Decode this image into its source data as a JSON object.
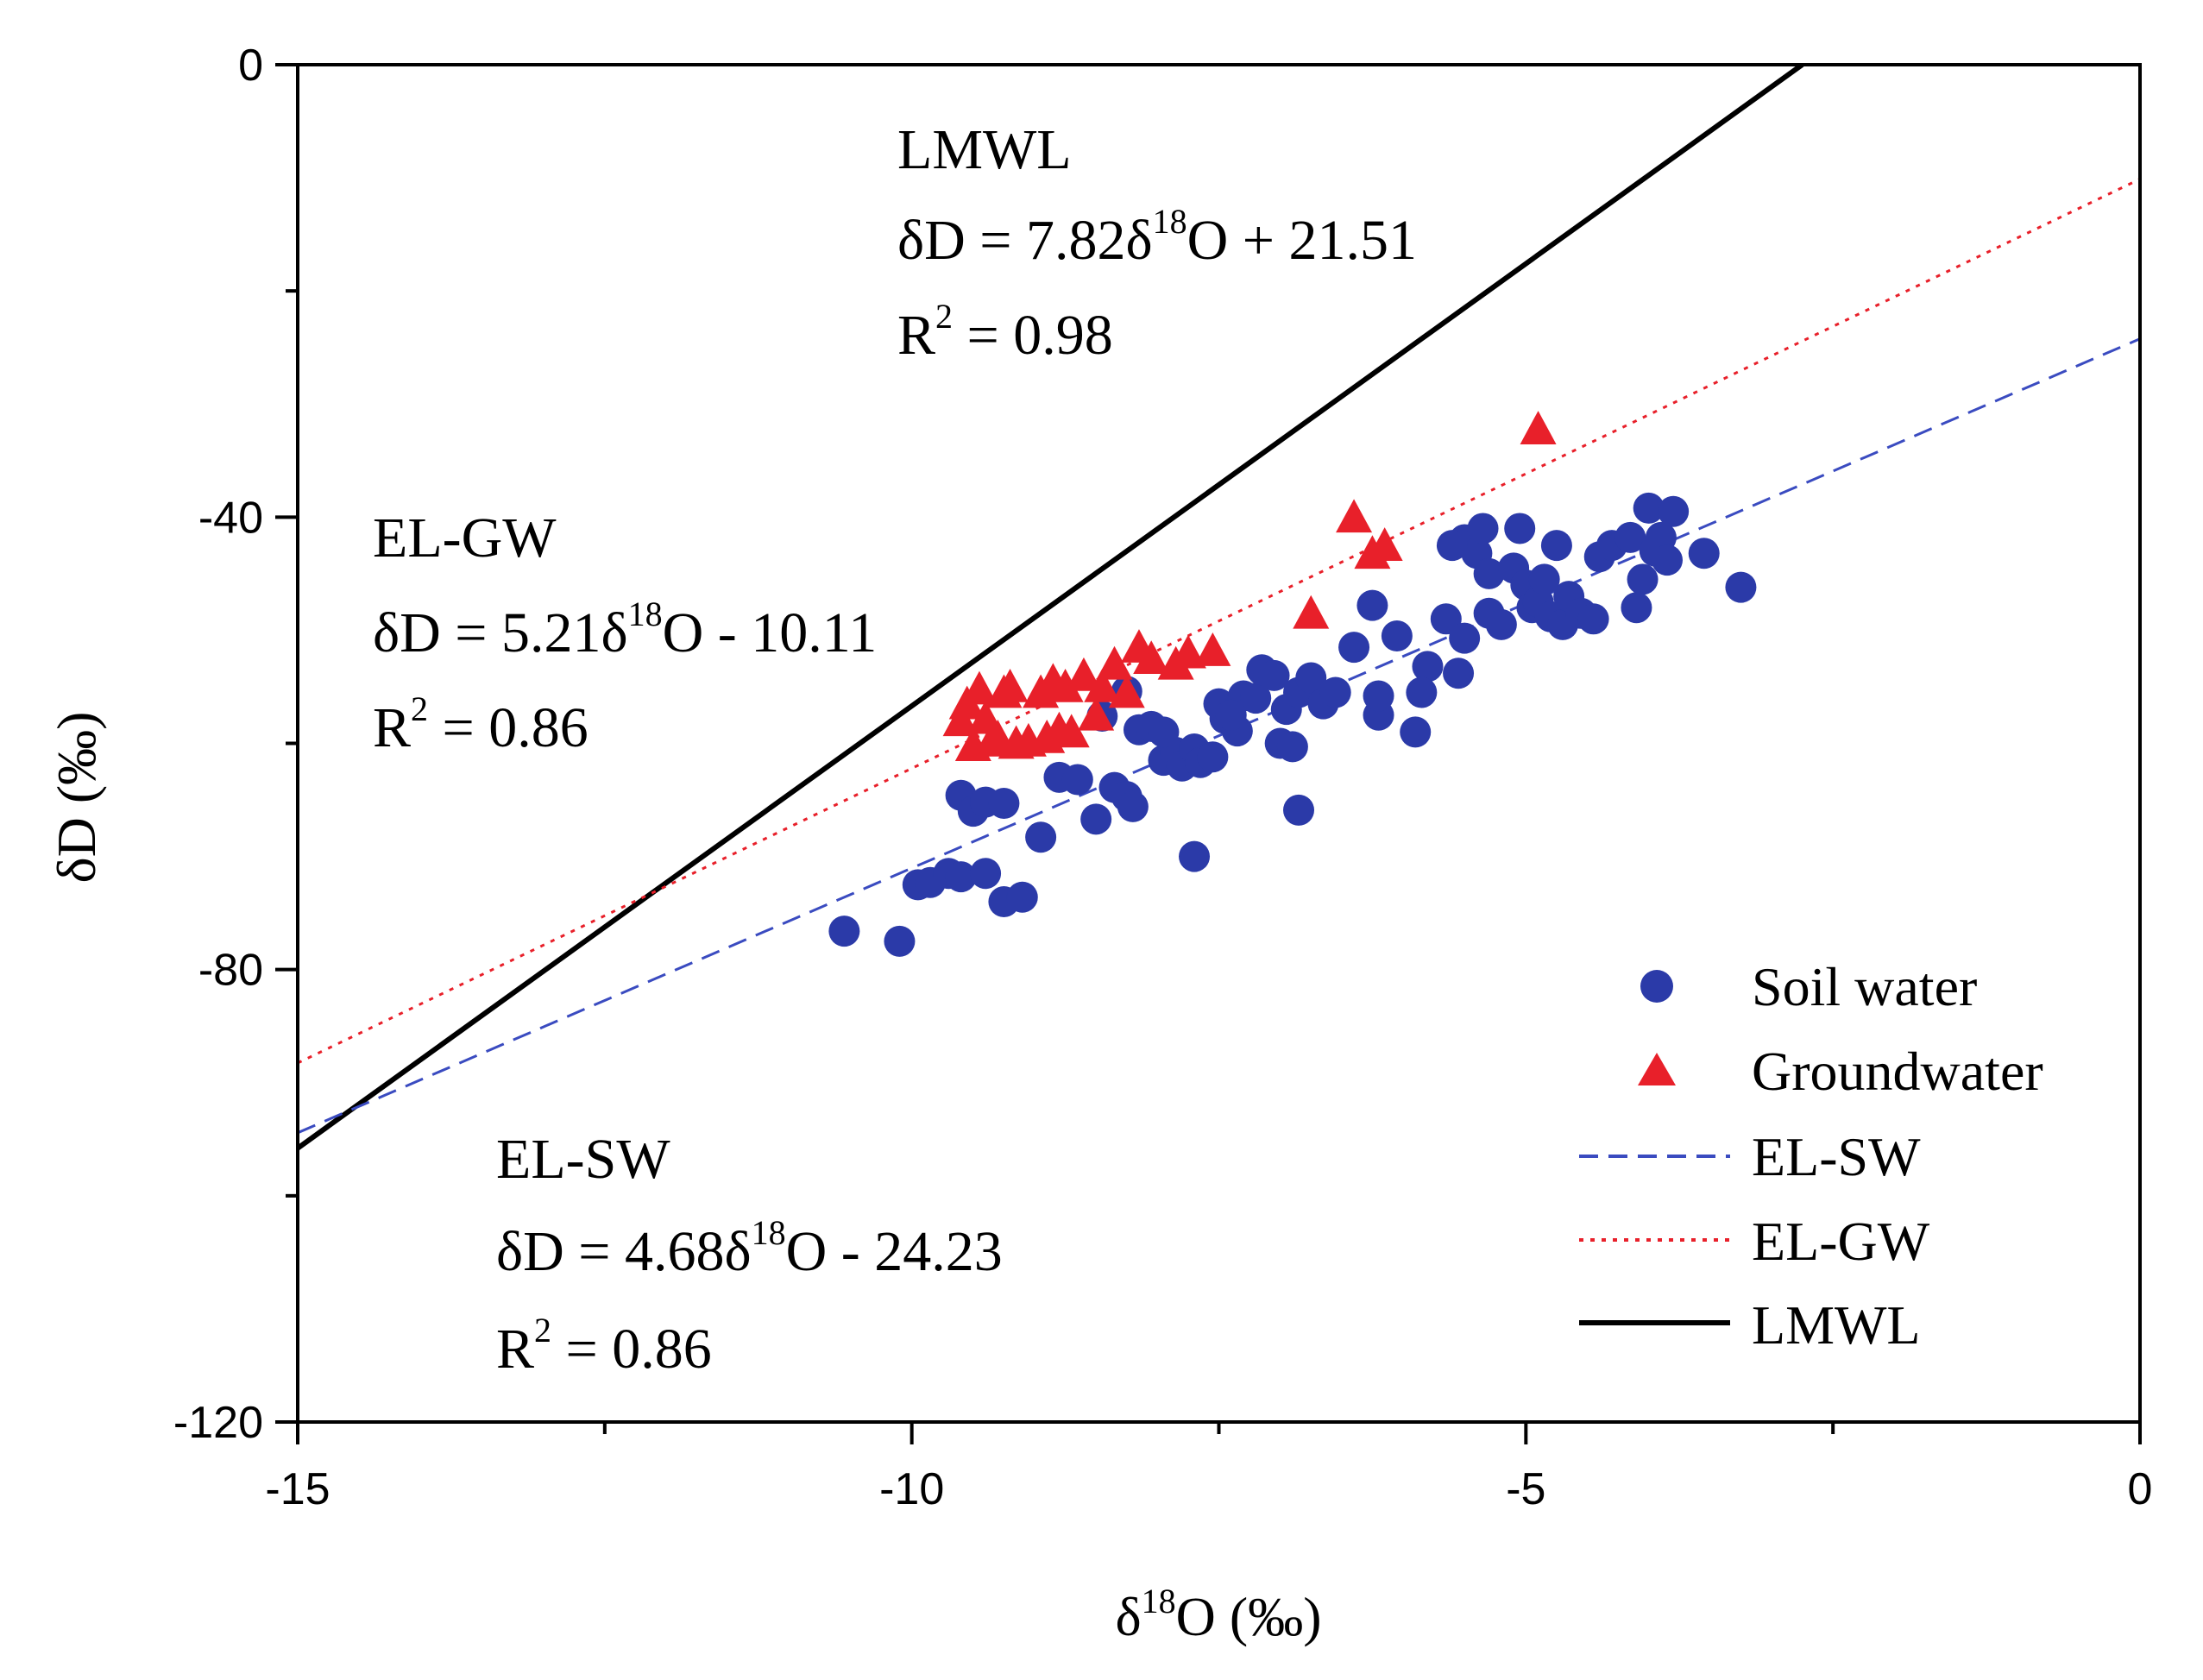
{
  "chart_data": {
    "type": "scatter",
    "xlabel": {
      "pre": "δ",
      "sup": "18",
      "post": "O (‰)"
    },
    "ylabel": "δD (‰)",
    "xlim": [
      -15,
      0
    ],
    "ylim": [
      -120,
      0
    ],
    "x_ticks": [
      -15,
      -10,
      -5,
      0
    ],
    "y_ticks": [
      -120,
      -80,
      -40,
      0
    ],
    "x_tick_labels": [
      "-15",
      "-10",
      "-5",
      "0"
    ],
    "y_tick_labels": [
      "-120",
      "-80",
      "-40",
      "0"
    ],
    "grid": false,
    "legend_position": "bottom-right",
    "legend": [
      {
        "label": "Soil water",
        "marker": "circle",
        "color": "#2b3aa8"
      },
      {
        "label": "Groundwater",
        "marker": "triangle",
        "color": "#e8202a"
      },
      {
        "label": "EL-SW",
        "line": "dashed",
        "color": "#3a4bc0"
      },
      {
        "label": "EL-GW",
        "line": "dotted",
        "color": "#e8202a"
      },
      {
        "label": "LMWL",
        "line": "solid",
        "color": "#000000"
      }
    ],
    "lines": [
      {
        "name": "LMWL",
        "slope": 7.82,
        "intercept": 21.51,
        "x_range": [
          -15,
          -2.75
        ],
        "style": "solid",
        "color": "#000000"
      },
      {
        "name": "EL-GW",
        "slope": 5.21,
        "intercept": -10.11,
        "x_range": [
          -15,
          0
        ],
        "style": "dotted",
        "color": "#e8202a"
      },
      {
        "name": "EL-SW",
        "slope": 4.68,
        "intercept": -24.23,
        "x_range": [
          -15,
          0
        ],
        "style": "dashed",
        "color": "#3a4bc0"
      }
    ],
    "annotations": [
      {
        "title": "LMWL",
        "eq_pre": "δD = 7.82δ",
        "eq_sup": "18",
        "eq_post": "O + 21.51",
        "r2_pre": "R",
        "r2_sup": "2",
        "r2_post": " = 0.98"
      },
      {
        "title": "EL-GW",
        "eq_pre": "δD = 5.21δ",
        "eq_sup": "18",
        "eq_post": "O - 10.11",
        "r2_pre": "R",
        "r2_sup": "2",
        "r2_post": " = 0.86"
      },
      {
        "title": "EL-SW",
        "eq_pre": "δD = 4.68δ",
        "eq_sup": "18",
        "eq_post": "O - 24.23",
        "r2_pre": "R",
        "r2_sup": "2",
        "r2_post": " = 0.86"
      }
    ],
    "series": [
      {
        "name": "Soil water",
        "marker": "circle",
        "color": "#2b3aa8",
        "points": [
          [
            -10.55,
            -76.6
          ],
          [
            -10.1,
            -77.5
          ],
          [
            -9.95,
            -72.5
          ],
          [
            -9.85,
            -72.3
          ],
          [
            -9.7,
            -71.5
          ],
          [
            -9.6,
            -71.8
          ],
          [
            -9.4,
            -71.5
          ],
          [
            -9.25,
            -74.0
          ],
          [
            -9.1,
            -73.6
          ],
          [
            -9.6,
            -64.6
          ],
          [
            -9.5,
            -66.0
          ],
          [
            -9.4,
            -65.2
          ],
          [
            -9.25,
            -65.3
          ],
          [
            -8.95,
            -68.3
          ],
          [
            -8.8,
            -63.0
          ],
          [
            -8.65,
            -63.2
          ],
          [
            -8.5,
            -66.7
          ],
          [
            -8.35,
            -63.9
          ],
          [
            -8.25,
            -64.7
          ],
          [
            -8.2,
            -65.6
          ],
          [
            -8.45,
            -57.6
          ],
          [
            -8.25,
            -55.4
          ],
          [
            -8.15,
            -58.8
          ],
          [
            -8.05,
            -58.5
          ],
          [
            -7.95,
            -61.5
          ],
          [
            -7.85,
            -60.8
          ],
          [
            -7.8,
            -62.0
          ],
          [
            -7.7,
            -60.5
          ],
          [
            -7.65,
            -61.7
          ],
          [
            -7.55,
            -61.2
          ],
          [
            -7.5,
            -56.5
          ],
          [
            -7.45,
            -57.8
          ],
          [
            -7.35,
            -58.9
          ],
          [
            -7.3,
            -55.8
          ],
          [
            -7.2,
            -56.0
          ],
          [
            -7.15,
            -53.5
          ],
          [
            -7.05,
            -54.0
          ],
          [
            -6.95,
            -57.0
          ],
          [
            -6.85,
            -55.5
          ],
          [
            -6.75,
            -54.2
          ],
          [
            -7.0,
            -60.0
          ],
          [
            -6.9,
            -60.3
          ],
          [
            -6.85,
            -65.9
          ],
          [
            -7.7,
            -70.0
          ],
          [
            -6.65,
            -56.5
          ],
          [
            -6.55,
            -55.5
          ],
          [
            -6.4,
            -51.5
          ],
          [
            -6.25,
            -47.8
          ],
          [
            -6.2,
            -57.5
          ],
          [
            -6.05,
            -50.5
          ],
          [
            -6.2,
            -55.8
          ],
          [
            -5.9,
            -59.0
          ],
          [
            -5.8,
            -53.2
          ],
          [
            -5.85,
            -55.5
          ],
          [
            -5.65,
            -49.0
          ],
          [
            -5.55,
            -53.8
          ],
          [
            -5.5,
            -50.7
          ],
          [
            -5.5,
            -42.0
          ],
          [
            -5.4,
            -43.2
          ],
          [
            -5.35,
            -41.0
          ],
          [
            -5.3,
            -45.0
          ],
          [
            -5.3,
            -48.5
          ],
          [
            -5.2,
            -49.5
          ],
          [
            -5.1,
            -44.5
          ],
          [
            -5.05,
            -41.0
          ],
          [
            -5.0,
            -46.0
          ],
          [
            -4.95,
            -48.0
          ],
          [
            -4.9,
            -47.5
          ],
          [
            -4.85,
            -45.5
          ],
          [
            -4.8,
            -48.8
          ],
          [
            -4.75,
            -42.5
          ],
          [
            -4.7,
            -49.5
          ],
          [
            -4.65,
            -47.0
          ],
          [
            -4.55,
            -48.5
          ],
          [
            -4.45,
            -49.0
          ],
          [
            -4.4,
            -43.5
          ],
          [
            -4.3,
            -42.5
          ],
          [
            -4.15,
            -41.8
          ],
          [
            -4.1,
            -48.0
          ],
          [
            -4.05,
            -45.5
          ],
          [
            -4.0,
            -39.2
          ],
          [
            -3.95,
            -43.0
          ],
          [
            -3.9,
            -41.8
          ],
          [
            -3.85,
            -43.8
          ],
          [
            -3.8,
            -39.5
          ],
          [
            -3.55,
            -43.2
          ],
          [
            -3.25,
            -46.2
          ],
          [
            -7.95,
            -59.0
          ],
          [
            -7.4,
            -57.5
          ],
          [
            -5.6,
            -42.5
          ]
        ]
      },
      {
        "name": "Groundwater",
        "marker": "triangle",
        "color": "#e8202a",
        "points": [
          [
            -9.6,
            -58.0
          ],
          [
            -9.55,
            -56.5
          ],
          [
            -9.5,
            -60.2
          ],
          [
            -9.45,
            -55.2
          ],
          [
            -9.4,
            -57.8
          ],
          [
            -9.35,
            -59.8
          ],
          [
            -9.3,
            -59.5
          ],
          [
            -9.25,
            -55.5
          ],
          [
            -9.2,
            -55.0
          ],
          [
            -9.15,
            -60.0
          ],
          [
            -9.05,
            -59.8
          ],
          [
            -8.95,
            -55.5
          ],
          [
            -8.9,
            -59.5
          ],
          [
            -8.85,
            -54.5
          ],
          [
            -8.8,
            -58.8
          ],
          [
            -8.75,
            -55.0
          ],
          [
            -8.7,
            -59.0
          ],
          [
            -8.6,
            -54.0
          ],
          [
            -8.5,
            -57.5
          ],
          [
            -8.45,
            -55.0
          ],
          [
            -8.35,
            -53.0
          ],
          [
            -8.25,
            -55.5
          ],
          [
            -8.15,
            -51.5
          ],
          [
            -8.05,
            -52.5
          ],
          [
            -7.85,
            -53.0
          ],
          [
            -7.75,
            -52.0
          ],
          [
            -7.55,
            -51.8
          ],
          [
            -6.75,
            -48.5
          ],
          [
            -6.4,
            -40.0
          ],
          [
            -6.25,
            -43.2
          ],
          [
            -6.15,
            -42.5
          ],
          [
            -4.9,
            -32.2
          ]
        ]
      }
    ]
  }
}
